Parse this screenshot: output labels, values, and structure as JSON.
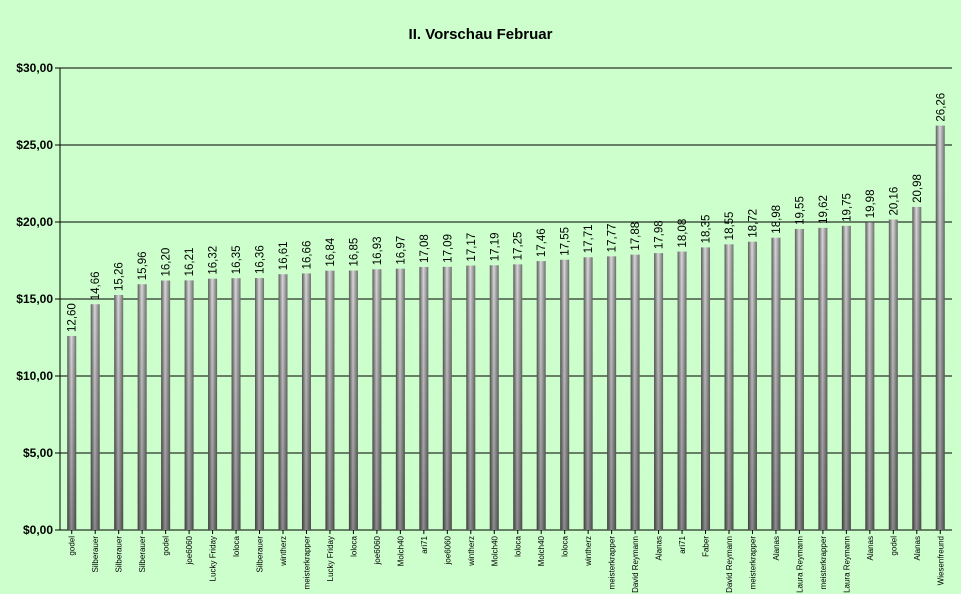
{
  "chart_data": {
    "type": "bar",
    "title": "II. Vorschau Februar",
    "xlabel": "",
    "ylabel": "",
    "ylim": [
      0,
      30
    ],
    "yticks": [
      "$0,00",
      "$5,00",
      "$10,00",
      "$15,00",
      "$20,00",
      "$25,00",
      "$30,00"
    ],
    "grid": true,
    "categories": [
      "godel",
      "Silberauer",
      "Silberauer",
      "Silberauer",
      "godel",
      "joe6060",
      "Lucky Friday",
      "loloca",
      "Silberauer",
      "wintherz",
      "meisterkrapper",
      "Lucky Friday",
      "loloca",
      "joe6060",
      "Molch40",
      "ari71",
      "joe6060",
      "wintherz",
      "Molch40",
      "loloca",
      "Molch40",
      "loloca",
      "wintherz",
      "meisterkrapper",
      "David Reymann",
      "Alanas",
      "ari71",
      "Faber",
      "David Reymann",
      "meisterkrapper",
      "Alanas",
      "Laura Reymann",
      "meisterkrapper",
      "Laura Reymann",
      "Alanas",
      "godel",
      "Alanas",
      "Wiesenfreund"
    ],
    "values": [
      12.6,
      14.66,
      15.26,
      15.96,
      16.2,
      16.21,
      16.32,
      16.35,
      16.36,
      16.61,
      16.66,
      16.84,
      16.85,
      16.93,
      16.97,
      17.08,
      17.09,
      17.17,
      17.19,
      17.25,
      17.46,
      17.55,
      17.71,
      17.77,
      17.88,
      17.98,
      18.08,
      18.35,
      18.55,
      18.72,
      18.98,
      19.55,
      19.62,
      19.75,
      19.98,
      20.16,
      20.98,
      26.26
    ],
    "value_labels": [
      "12,60",
      "14,66",
      "15,26",
      "15,96",
      "16,20",
      "16,21",
      "16,32",
      "16,35",
      "16,36",
      "16,61",
      "16,66",
      "16,84",
      "16,85",
      "16,93",
      "16,97",
      "17,08",
      "17,09",
      "17,17",
      "17,19",
      "17,25",
      "17,46",
      "17,55",
      "17,71",
      "17,77",
      "17,88",
      "17,98",
      "18,08",
      "18,35",
      "18,55",
      "18,72",
      "18,98",
      "19,55",
      "19,62",
      "19,75",
      "19,98",
      "20,16",
      "20,98",
      "26,26"
    ]
  }
}
